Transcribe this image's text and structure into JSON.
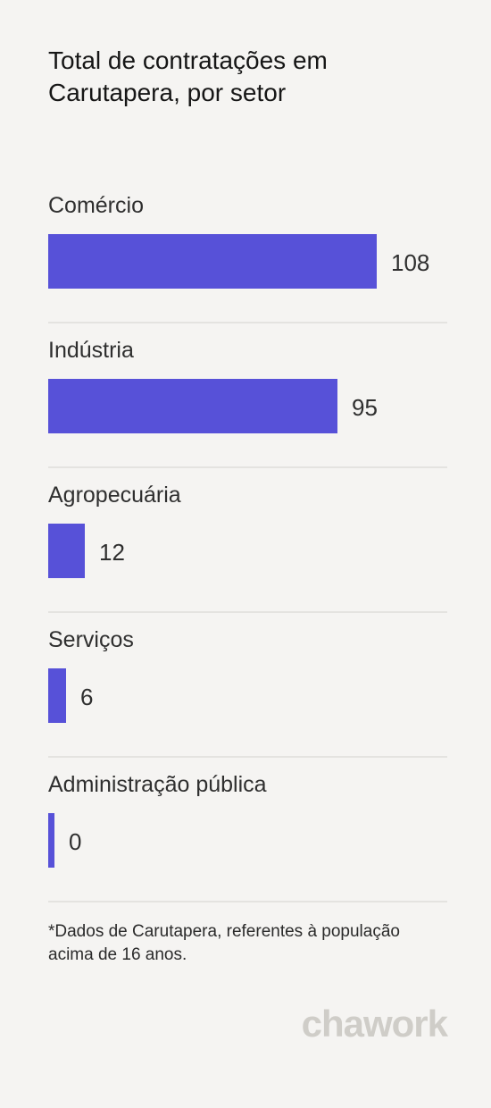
{
  "chart_data": {
    "type": "bar",
    "orientation": "horizontal",
    "title": "Total de contratações em Carutapera, por setor",
    "categories": [
      "Comércio",
      "Indústria",
      "Agropecuária",
      "Serviços",
      "Administração pública"
    ],
    "values": [
      108,
      95,
      12,
      6,
      0
    ],
    "xlim": [
      0,
      108
    ],
    "grid": false,
    "bar_color": "#5751d8"
  },
  "footnote": "*Dados de Carutapera, referentes à população acima de 16 anos.",
  "brand": {
    "logo_text": "chawork"
  }
}
